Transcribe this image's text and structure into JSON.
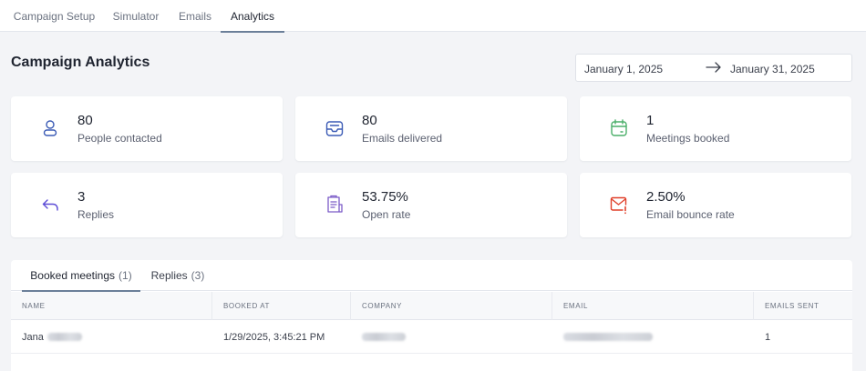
{
  "tabs": [
    {
      "label": "Campaign Setup",
      "active": false
    },
    {
      "label": "Simulator",
      "active": false
    },
    {
      "label": "Emails",
      "active": false
    },
    {
      "label": "Analytics",
      "active": true
    }
  ],
  "page_title": "Campaign Analytics",
  "date_range": {
    "start": "January 1, 2025",
    "end": "January 31, 2025",
    "arrow_icon": "arrow-right-icon"
  },
  "stats": [
    {
      "value": "80",
      "label": "People contacted",
      "icon": "person-icon",
      "color": "#3b5bb5"
    },
    {
      "value": "80",
      "label": "Emails delivered",
      "icon": "inbox-tray-icon",
      "color": "#3b5bb5"
    },
    {
      "value": "1",
      "label": "Meetings booked",
      "icon": "calendar-icon",
      "color": "#4caf6a"
    },
    {
      "value": "3",
      "label": "Replies",
      "icon": "reply-arrow-icon",
      "color": "#5b4bd6"
    },
    {
      "value": "53.75%",
      "label": "Open rate",
      "icon": "clipboard-list-icon",
      "color": "#7c5cc8"
    },
    {
      "value": "2.50%",
      "label": "Email bounce rate",
      "icon": "mail-alert-icon",
      "color": "#e0402a"
    }
  ],
  "subtabs": [
    {
      "label": "Booked meetings",
      "count": "(1)",
      "active": true
    },
    {
      "label": "Replies",
      "count": "(3)",
      "active": false
    }
  ],
  "table": {
    "columns": [
      "Name",
      "Booked at",
      "Company",
      "Email",
      "Emails sent"
    ],
    "rows": [
      {
        "name": "Jana",
        "booked_at": "1/29/2025, 3:45:21 PM",
        "emails_sent": "1"
      }
    ]
  }
}
